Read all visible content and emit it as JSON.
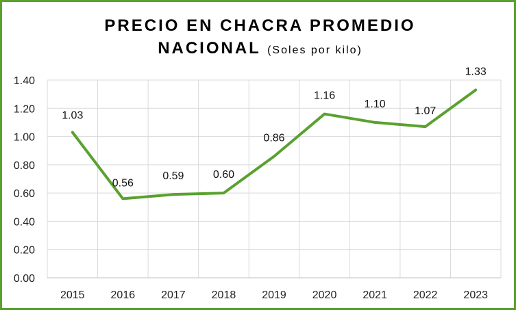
{
  "chart_data": {
    "type": "line",
    "title_line1": "PRECIO EN CHACRA PROMEDIO",
    "title_line2": "NACIONAL",
    "subtitle": "(Soles por kilo)",
    "xlabel": "",
    "ylabel": "",
    "categories": [
      "2015",
      "2016",
      "2017",
      "2018",
      "2019",
      "2020",
      "2021",
      "2022",
      "2023"
    ],
    "series": [
      {
        "values": [
          1.03,
          0.56,
          0.59,
          0.6,
          0.86,
          1.16,
          1.1,
          1.07,
          1.33
        ],
        "labels": [
          "1.03",
          "0.56",
          "0.59",
          "0.60",
          "0.86",
          "1.16",
          "1.10",
          "1.07",
          "1.33"
        ],
        "color": "#5aa12f"
      }
    ],
    "ylim": [
      0,
      1.4
    ],
    "yticks": [
      "0.00",
      "0.20",
      "0.40",
      "0.60",
      "0.80",
      "1.00",
      "1.20",
      "1.40"
    ],
    "grid": true,
    "legend": "none"
  }
}
